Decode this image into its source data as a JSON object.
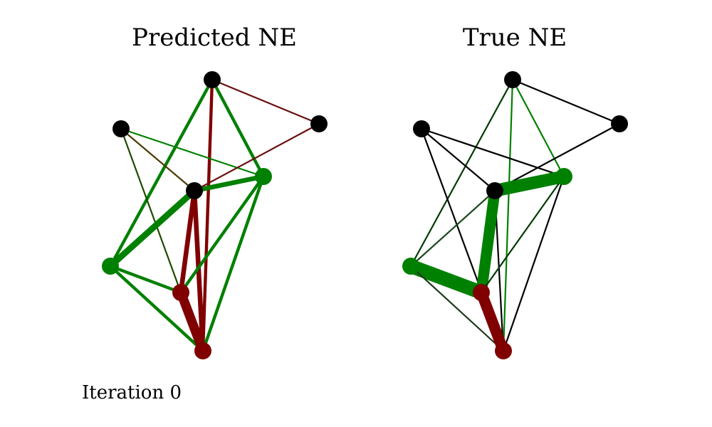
{
  "panels": [
    {
      "title": "Predicted NE",
      "nodes": [
        {
          "id": "n1",
          "color": "#000000"
        },
        {
          "id": "n2",
          "color": "#000000"
        },
        {
          "id": "n3",
          "color": "#000000"
        },
        {
          "id": "n4",
          "color": "#000000"
        },
        {
          "id": "n5",
          "color": "#008000"
        },
        {
          "id": "n6",
          "color": "#008000"
        },
        {
          "id": "n7",
          "color": "#800000"
        },
        {
          "id": "n8",
          "color": "#800000"
        }
      ],
      "edges": [
        {
          "from": "n1",
          "to": "n2",
          "color": "#6b0f0f",
          "weight": 1
        },
        {
          "from": "n1",
          "to": "n6",
          "color": "#008000",
          "weight": 2
        },
        {
          "from": "n1",
          "to": "n5",
          "color": "#008000",
          "weight": 2
        },
        {
          "from": "n1",
          "to": "n8",
          "color": "#800000",
          "weight": 2
        },
        {
          "from": "n3",
          "to": "n4",
          "color": "#4a3a00",
          "weight": 1
        },
        {
          "from": "n3",
          "to": "n6",
          "color": "#008000",
          "weight": 1
        },
        {
          "from": "n3",
          "to": "n7",
          "color": "#1e4a00",
          "weight": 1
        },
        {
          "from": "n4",
          "to": "n2",
          "color": "#6b0f0f",
          "weight": 1
        },
        {
          "from": "n4",
          "to": "n5",
          "color": "#008000",
          "weight": 4
        },
        {
          "from": "n4",
          "to": "n6",
          "color": "#008000",
          "weight": 3
        },
        {
          "from": "n4",
          "to": "n7",
          "color": "#800000",
          "weight": 3
        },
        {
          "from": "n4",
          "to": "n8",
          "color": "#800000",
          "weight": 3
        },
        {
          "from": "n5",
          "to": "n7",
          "color": "#008000",
          "weight": 2
        },
        {
          "from": "n5",
          "to": "n8",
          "color": "#008000",
          "weight": 2
        },
        {
          "from": "n6",
          "to": "n7",
          "color": "#008000",
          "weight": 2
        },
        {
          "from": "n6",
          "to": "n8",
          "color": "#008000",
          "weight": 2
        },
        {
          "from": "n7",
          "to": "n8",
          "color": "#800000",
          "weight": 6
        }
      ]
    },
    {
      "title": "True NE",
      "nodes": [
        {
          "id": "n1",
          "color": "#000000"
        },
        {
          "id": "n2",
          "color": "#000000"
        },
        {
          "id": "n3",
          "color": "#000000"
        },
        {
          "id": "n4",
          "color": "#000000"
        },
        {
          "id": "n5",
          "color": "#008000"
        },
        {
          "id": "n6",
          "color": "#008000"
        },
        {
          "id": "n7",
          "color": "#800000"
        },
        {
          "id": "n8",
          "color": "#800000"
        }
      ],
      "edges": [
        {
          "from": "n1",
          "to": "n2",
          "color": "#000000",
          "weight": 1
        },
        {
          "from": "n1",
          "to": "n6",
          "color": "#008000",
          "weight": 1
        },
        {
          "from": "n1",
          "to": "n5",
          "color": "#003a00",
          "weight": 1
        },
        {
          "from": "n1",
          "to": "n8",
          "color": "#008000",
          "weight": 1
        },
        {
          "from": "n3",
          "to": "n4",
          "color": "#000000",
          "weight": 1
        },
        {
          "from": "n3",
          "to": "n6",
          "color": "#000000",
          "weight": 1
        },
        {
          "from": "n3",
          "to": "n8",
          "color": "#000000",
          "weight": 1
        },
        {
          "from": "n4",
          "to": "n2",
          "color": "#000000",
          "weight": 1
        },
        {
          "from": "n4",
          "to": "n5",
          "color": "#1e4a1e",
          "weight": 1
        },
        {
          "from": "n4",
          "to": "n8",
          "color": "#000000",
          "weight": 1
        },
        {
          "from": "n4",
          "to": "n7",
          "color": "#008000",
          "weight": 7
        },
        {
          "from": "n6",
          "to": "n4",
          "color": "#008000",
          "weight": 8
        },
        {
          "from": "n6",
          "to": "n7",
          "color": "#003a00",
          "weight": 1
        },
        {
          "from": "n6",
          "to": "n8",
          "color": "#000000",
          "weight": 1
        },
        {
          "from": "n5",
          "to": "n7",
          "color": "#008000",
          "weight": 9
        },
        {
          "from": "n5",
          "to": "n8",
          "color": "#1e3a1e",
          "weight": 1
        },
        {
          "from": "n7",
          "to": "n8",
          "color": "#800000",
          "weight": 7
        }
      ]
    }
  ],
  "footer": {
    "iteration_label": "Iteration 0"
  }
}
